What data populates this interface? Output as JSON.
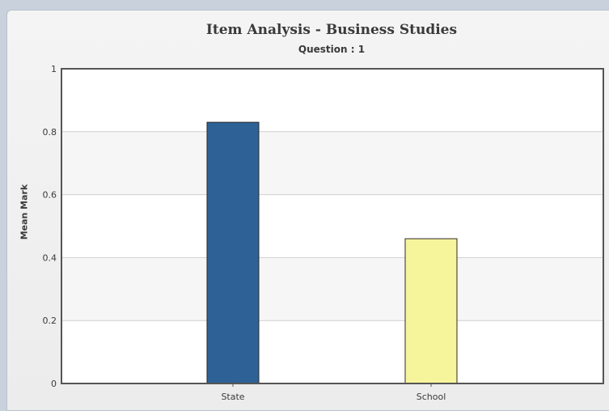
{
  "chart_data": {
    "type": "bar",
    "title": "Item Analysis - Business Studies",
    "subtitle": "Question : 1",
    "xlabel": "",
    "ylabel": "Mean Mark",
    "categories": [
      "State",
      "School"
    ],
    "values": [
      0.83,
      0.46
    ],
    "colors": [
      "#2e6195",
      "#f7f59b"
    ],
    "ylim": [
      0,
      1
    ],
    "yticks": [
      0,
      0.2,
      0.4,
      0.6,
      0.8,
      1
    ],
    "ytick_labels": [
      "0",
      "0.2",
      "0.4",
      "0.6",
      "0.8",
      "1"
    ],
    "grid": true,
    "legend": "none"
  }
}
